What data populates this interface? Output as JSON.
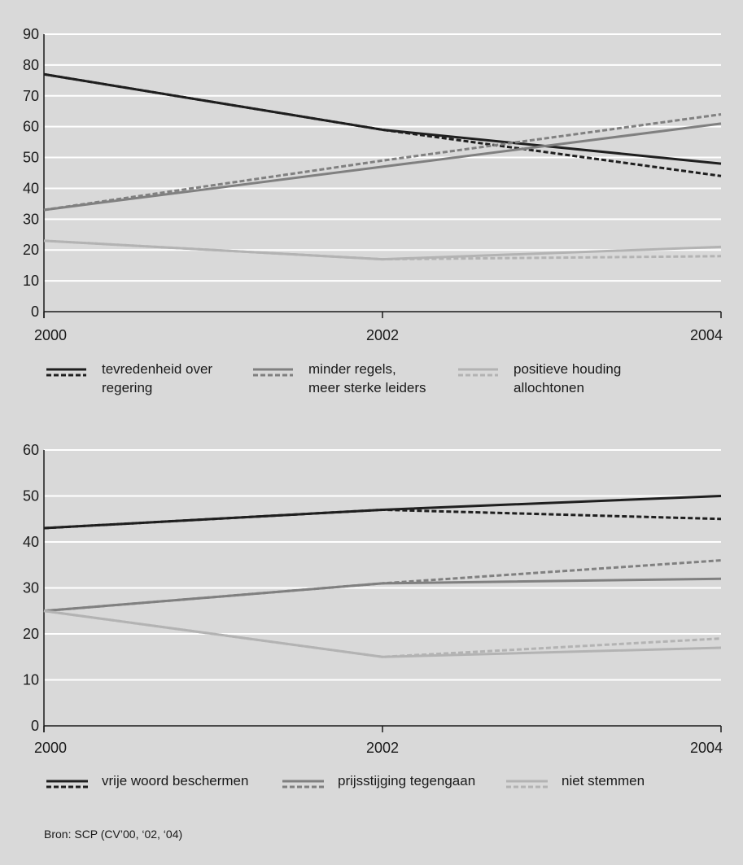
{
  "colors": {
    "background": "#d9d9d9",
    "plot_background": "#d9d9d9",
    "gridline": "#ffffff",
    "axis": "#1a1a1a",
    "series_dark": "#1f1f1f",
    "series_mid": "#808080",
    "series_light": "#b3b3b3"
  },
  "source_note": "Bron: SCP (CV’00, ‘02, ‘04)",
  "chart_data": [
    {
      "type": "line",
      "x": [
        "2000",
        "2002",
        "2004"
      ],
      "ylim": [
        0,
        90
      ],
      "yticks": [
        0,
        10,
        20,
        30,
        40,
        50,
        60,
        70,
        80,
        90
      ],
      "grid": true,
      "legend_position": "bottom",
      "legend": [
        {
          "label_lines": [
            "tevredenheid over",
            "regering"
          ],
          "color": "#1f1f1f"
        },
        {
          "label_lines": [
            "minder regels,",
            "meer sterke leiders"
          ],
          "color": "#808080"
        },
        {
          "label_lines": [
            "positieve houding",
            "allochtonen"
          ],
          "color": "#b3b3b3"
        }
      ],
      "series": [
        {
          "legend_index": 0,
          "style": "solid",
          "color": "#1f1f1f",
          "values": [
            77,
            59,
            48
          ]
        },
        {
          "legend_index": 0,
          "style": "dashed",
          "color": "#1f1f1f",
          "values": [
            77,
            59,
            44
          ]
        },
        {
          "legend_index": 1,
          "style": "solid",
          "color": "#808080",
          "values": [
            33,
            47,
            61
          ]
        },
        {
          "legend_index": 1,
          "style": "dashed",
          "color": "#808080",
          "values": [
            33,
            49,
            64
          ]
        },
        {
          "legend_index": 2,
          "style": "solid",
          "color": "#b3b3b3",
          "values": [
            23,
            17,
            21
          ]
        },
        {
          "legend_index": 2,
          "style": "dashed",
          "color": "#b3b3b3",
          "values": [
            23,
            17,
            18
          ]
        }
      ]
    },
    {
      "type": "line",
      "x": [
        "2000",
        "2002",
        "2004"
      ],
      "ylim": [
        0,
        60
      ],
      "yticks": [
        0,
        10,
        20,
        30,
        40,
        50,
        60
      ],
      "grid": true,
      "legend_position": "bottom",
      "legend": [
        {
          "label_lines": [
            "vrije woord beschermen"
          ],
          "color": "#1f1f1f"
        },
        {
          "label_lines": [
            "prijsstijging tegengaan"
          ],
          "color": "#808080"
        },
        {
          "label_lines": [
            "niet stemmen"
          ],
          "color": "#b3b3b3"
        }
      ],
      "series": [
        {
          "legend_index": 0,
          "style": "solid",
          "color": "#1f1f1f",
          "values": [
            43,
            47,
            50
          ]
        },
        {
          "legend_index": 0,
          "style": "dashed",
          "color": "#1f1f1f",
          "values": [
            43,
            47,
            45
          ]
        },
        {
          "legend_index": 1,
          "style": "solid",
          "color": "#808080",
          "values": [
            25,
            31,
            32
          ]
        },
        {
          "legend_index": 1,
          "style": "dashed",
          "color": "#808080",
          "values": [
            25,
            31,
            36
          ]
        },
        {
          "legend_index": 2,
          "style": "solid",
          "color": "#b3b3b3",
          "values": [
            25,
            15,
            17
          ]
        },
        {
          "legend_index": 2,
          "style": "dashed",
          "color": "#b3b3b3",
          "values": [
            25,
            15,
            19
          ]
        }
      ]
    }
  ]
}
